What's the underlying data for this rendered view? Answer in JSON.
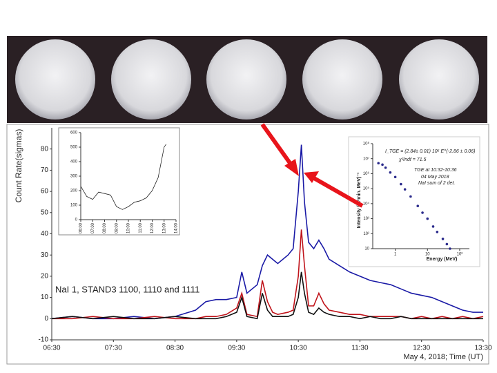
{
  "chart_data": [
    {
      "type": "line",
      "y_label": "Count Rate(sigmas)",
      "x_label": "May 4, 2018; Time (UT)",
      "annotation": "NaI 1, STAND3 1100, 1110 and 1111",
      "x": [
        "06:30",
        "06:50",
        "07:10",
        "07:30",
        "07:50",
        "08:10",
        "08:30",
        "08:50",
        "09:00",
        "09:10",
        "09:20",
        "09:30",
        "09:35",
        "09:40",
        "09:50",
        "09:55",
        "10:00",
        "10:05",
        "10:10",
        "10:20",
        "10:25",
        "10:30",
        "10:33",
        "10:36",
        "10:40",
        "10:45",
        "10:50",
        "10:55",
        "11:00",
        "11:10",
        "11:20",
        "11:30",
        "11:40",
        "11:50",
        "12:00",
        "12:10",
        "12:20",
        "12:30",
        "12:40",
        "12:50",
        "13:00",
        "13:10",
        "13:20",
        "13:30"
      ],
      "series": [
        {
          "color": "#1a1aa6",
          "values": [
            0,
            1,
            0,
            0,
            1,
            0,
            1,
            4,
            8,
            9,
            9,
            10,
            22,
            12,
            16,
            25,
            30,
            28,
            26,
            30,
            33,
            60,
            82,
            55,
            36,
            33,
            37,
            33,
            28,
            25,
            22,
            20,
            18,
            17,
            16,
            14,
            12,
            11,
            10,
            8,
            6,
            4,
            3,
            3
          ]
        },
        {
          "color": "#c0141b",
          "values": [
            0,
            0,
            1,
            0,
            0,
            1,
            0,
            0,
            1,
            1,
            2,
            5,
            12,
            2,
            1,
            18,
            8,
            3,
            2,
            3,
            4,
            20,
            42,
            25,
            6,
            6,
            12,
            7,
            4,
            3,
            2,
            2,
            1,
            1,
            1,
            1,
            0,
            1,
            0,
            1,
            0,
            1,
            0,
            1
          ]
        },
        {
          "color": "#111111",
          "values": [
            0,
            1,
            0,
            1,
            0,
            0,
            1,
            0,
            0,
            0,
            1,
            3,
            10,
            1,
            0,
            12,
            4,
            1,
            1,
            1,
            2,
            10,
            22,
            12,
            3,
            2,
            5,
            3,
            2,
            1,
            1,
            0,
            1,
            0,
            0,
            1,
            0,
            0,
            0,
            0,
            0,
            0,
            0,
            0
          ]
        }
      ],
      "xlim": [
        "06:30",
        "13:30"
      ],
      "xticks": [
        "06:30",
        "07:30",
        "08:30",
        "09:30",
        "10:30",
        "11:30",
        "12:30",
        "13:30"
      ],
      "ylim": [
        -10,
        90
      ],
      "yticks": [
        -10,
        0,
        10,
        20,
        30,
        40,
        50,
        60,
        70,
        80
      ]
    },
    {
      "type": "line",
      "x": [
        "06:00",
        "06:30",
        "07:00",
        "07:30",
        "08:00",
        "08:30",
        "09:00",
        "09:30",
        "10:00",
        "10:30",
        "11:00",
        "11:30",
        "12:00",
        "12:30",
        "13:00",
        "13:10"
      ],
      "series": [
        {
          "color": "#222222",
          "values": [
            230,
            160,
            140,
            190,
            180,
            170,
            90,
            70,
            90,
            120,
            130,
            150,
            200,
            290,
            500,
            520
          ]
        }
      ],
      "xlim": [
        "06:00",
        "14:00"
      ],
      "xticks": [
        "06:00",
        "07:00",
        "08:00",
        "09:00",
        "10:00",
        "11:00",
        "12:00",
        "13:00",
        "14:00"
      ],
      "ylim": [
        0,
        600
      ],
      "yticks": [
        0,
        100,
        200,
        300,
        400,
        500,
        600
      ]
    },
    {
      "type": "scatter",
      "log_x": true,
      "log_y": true,
      "y_label": "Intensity (m²min. MeV)⁻¹",
      "x_label": "Energy (MeV)",
      "annotations": [
        "I_TGE = (2.84± 0.01) 10⁶ E^(-2.86 ± 0.06)",
        "χ²/ndf = 71.5",
        "TGE at 10:32-10:36",
        "04  May 2018",
        "NaI  sum of 2 det."
      ],
      "color": "#2b2b8c",
      "x": [
        0.3,
        0.4,
        0.5,
        0.7,
        1,
        1.5,
        2,
        3,
        5,
        7,
        10,
        15,
        20,
        30,
        40,
        50
      ],
      "values": [
        5000000,
        4000000,
        2500000,
        1200000,
        600000,
        200000,
        90000,
        30000,
        7000,
        2500,
        1000,
        300,
        130,
        45,
        20,
        10
      ],
      "xlim": [
        0.2,
        200
      ],
      "xticks": [
        1,
        10,
        {
          "value": 100,
          "label": "10²"
        }
      ],
      "ylim": [
        10,
        100000000
      ],
      "yticks": [
        10,
        {
          "value": 100,
          "label": "10²"
        },
        {
          "value": 1000,
          "label": "10³"
        },
        {
          "value": 10000,
          "label": "10⁴"
        },
        {
          "value": 100000,
          "label": "10⁵"
        },
        {
          "value": 1000000,
          "label": "10⁶"
        },
        {
          "value": 10000000,
          "label": "10⁷"
        },
        {
          "value": 100000000,
          "label": "10⁸"
        }
      ]
    }
  ]
}
